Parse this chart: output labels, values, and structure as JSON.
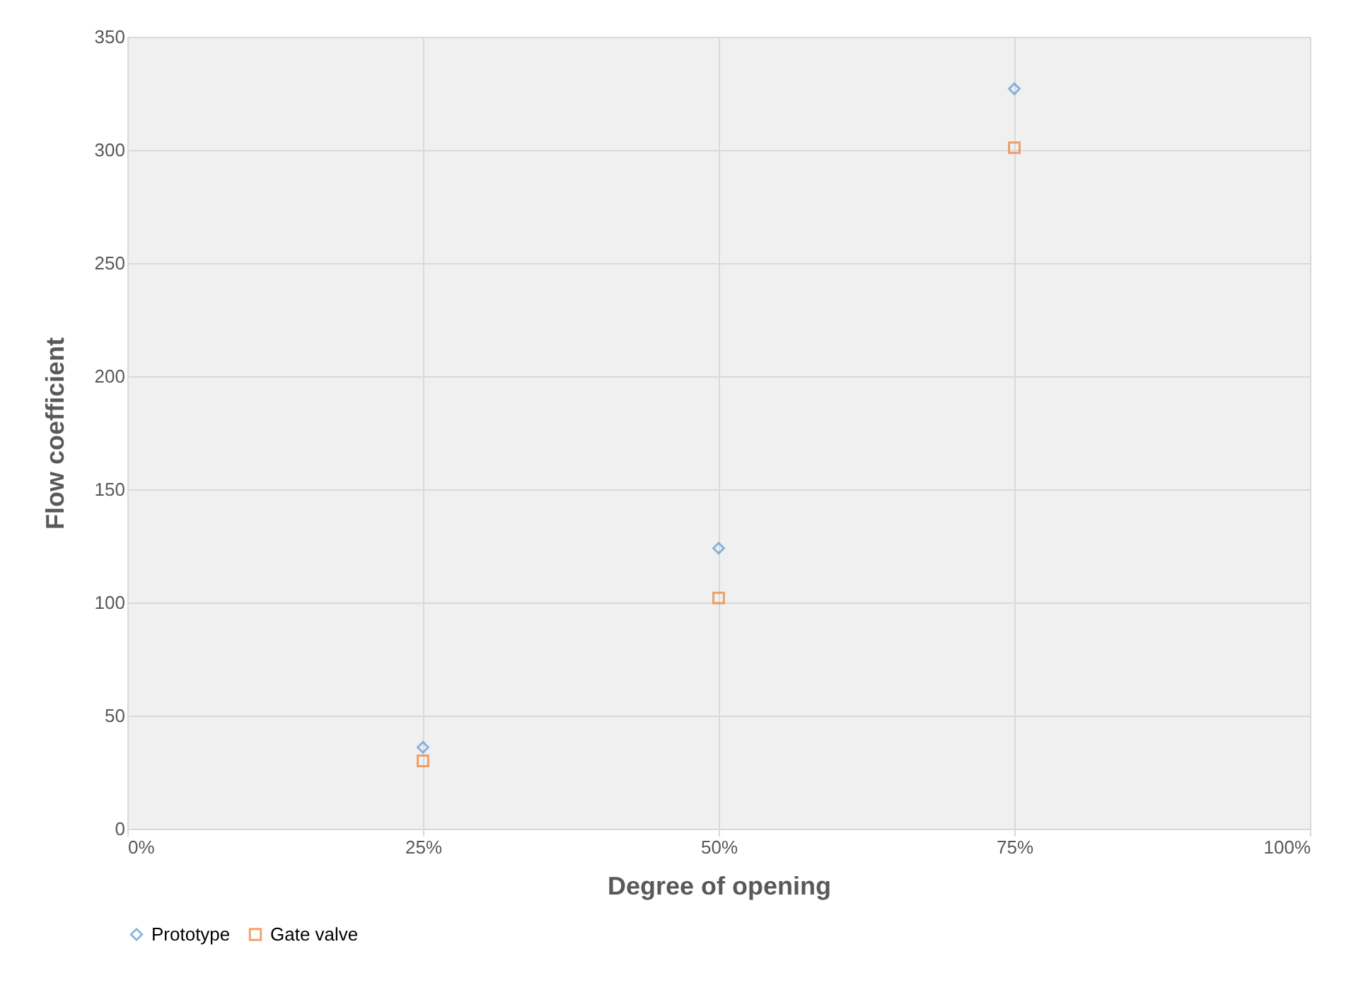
{
  "chart_data": {
    "type": "scatter",
    "xlabel": "Degree of opening",
    "ylabel": "Flow coefficient",
    "x": [
      25,
      50,
      75
    ],
    "series": [
      {
        "name": "Prototype",
        "color": "#5b9bd5",
        "marker": "diamond",
        "values": [
          36,
          124,
          327
        ]
      },
      {
        "name": "Gate valve",
        "color": "#ed7d31",
        "marker": "square",
        "values": [
          30,
          102,
          301
        ]
      }
    ],
    "xlim": [
      0,
      100
    ],
    "xticks": [
      {
        "value": 0,
        "label": "0%"
      },
      {
        "value": 25,
        "label": "25%"
      },
      {
        "value": 50,
        "label": "50%"
      },
      {
        "value": 75,
        "label": "75%"
      },
      {
        "value": 100,
        "label": "100%"
      }
    ],
    "ylim": [
      0,
      350
    ],
    "yticks": [
      0,
      50,
      100,
      150,
      200,
      250,
      300,
      350
    ],
    "grid": true,
    "legend": "bottom"
  }
}
